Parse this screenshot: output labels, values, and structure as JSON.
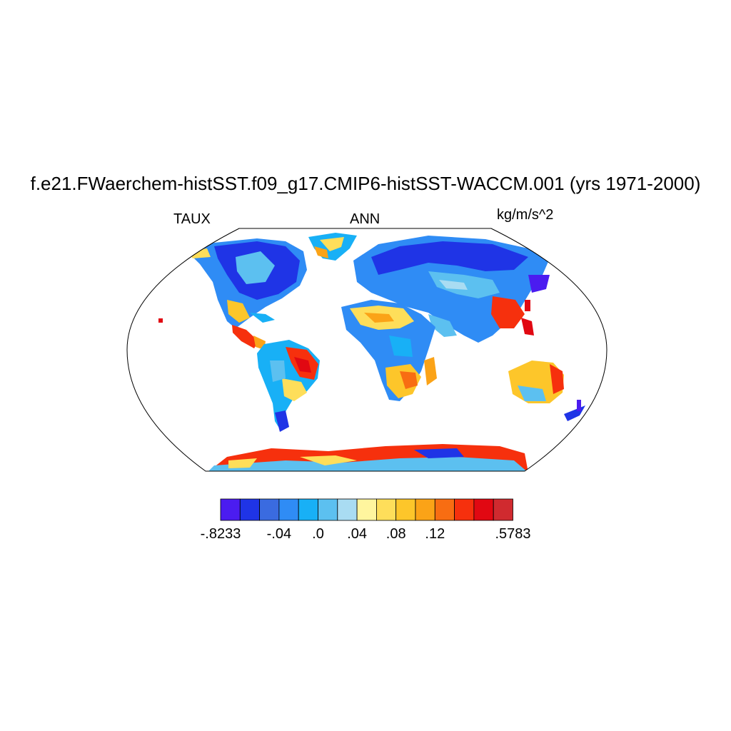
{
  "title": "f.e21.FWaerchem-histSST.f09_g17.CMIP6-histSST-WACCM.001 (yrs 1971-2000)",
  "left_string": "TAUX",
  "center_string": "ANN",
  "right_string": "kg/m/s^2",
  "map": {
    "projection": "Robinson",
    "field": "TAUX",
    "season": "ANN"
  },
  "colorbar": {
    "colors": [
      "#4b1cf0",
      "#1f34e6",
      "#3a6be0",
      "#2f8cf5",
      "#18b0f6",
      "#5cc0f0",
      "#a9dcf2",
      "#fff59e",
      "#fede5a",
      "#fdc62a",
      "#fba317",
      "#f86d12",
      "#f6300d",
      "#e10812",
      "#d02a2f"
    ],
    "labels": [
      "-.8233",
      "-.04",
      ".0",
      ".04",
      ".08",
      ".12",
      ".5783"
    ],
    "label_boxes": [
      0,
      3,
      5,
      7,
      9,
      11,
      15
    ]
  }
}
